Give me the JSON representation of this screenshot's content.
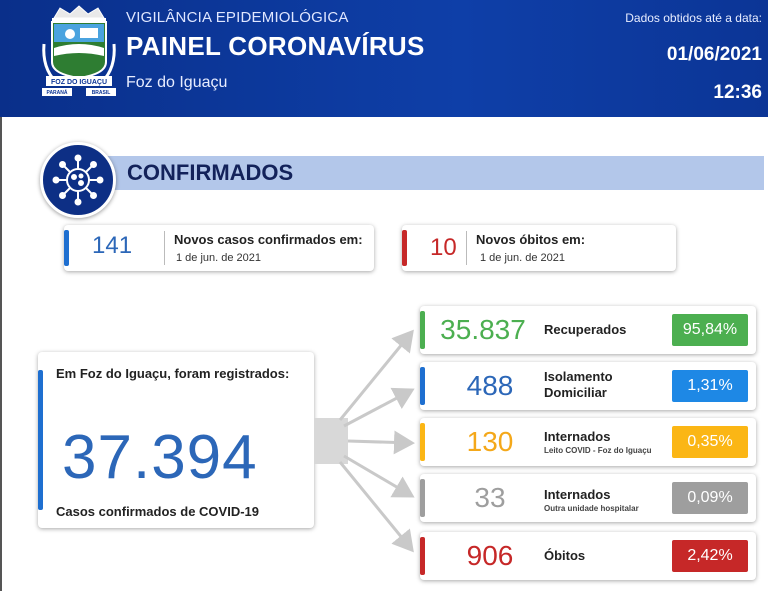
{
  "header": {
    "subtitle": "VIGILÂNCIA EPIDEMIOLÓGICA",
    "title": "PAINEL CORONAVÍRUS",
    "city": "Foz do Iguaçu",
    "data_label": "Dados obtidos até a data:",
    "date": "01/06/2021",
    "time": "12:36",
    "logo": {
      "top_text": "FOZ DO IGUAÇU",
      "left_text": "PARANÁ",
      "right_text": "BRASIL"
    }
  },
  "section": {
    "title": "CONFIRMADOS",
    "icon": "virus-icon"
  },
  "new_cases": {
    "value": "141",
    "label": "Novos casos confirmados em:",
    "date": "1 de jun. de 2021"
  },
  "new_deaths": {
    "value": "10",
    "label": "Novos óbitos em:",
    "date": "1 de jun. de 2021"
  },
  "total": {
    "label": "Em Foz do Iguaçu, foram registrados:",
    "value": "37.394",
    "caption": "Casos confirmados de COVID-19"
  },
  "breakdown": [
    {
      "value": "35.837",
      "label": "Recuperados",
      "sub": "",
      "percent": "95,84%"
    },
    {
      "value": "488",
      "label": "Isolamento Domiciliar",
      "sub": "",
      "percent": "1,31%"
    },
    {
      "value": "130",
      "label": "Internados",
      "sub": "Leito COVID - Foz do Iguaçu",
      "percent": "0,35%"
    },
    {
      "value": "33",
      "label": "Internados",
      "sub": "Outra unidade hospitalar",
      "percent": "0,09%"
    },
    {
      "value": "906",
      "label": "Óbitos",
      "sub": "",
      "percent": "2,42%"
    }
  ],
  "colors": {
    "header_bg": "#0c3596",
    "recovered": "#4caf50",
    "isolation": "#1e88e5",
    "hospital_covid": "#fbb615",
    "hospital_other": "#9e9e9e",
    "deaths": "#c62828",
    "total_number": "#2c67b8"
  }
}
